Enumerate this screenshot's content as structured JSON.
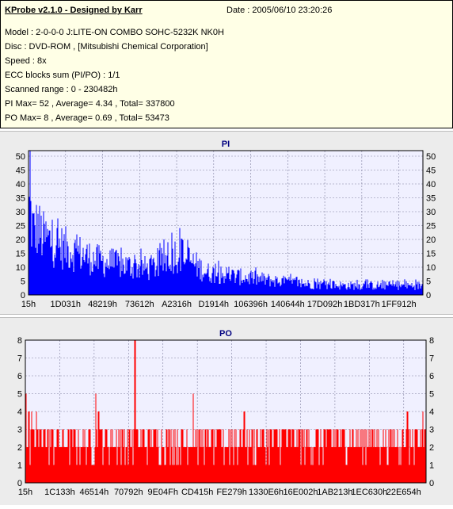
{
  "header": {
    "title": "KProbe v2.1.0 - Designed by Karr",
    "date": "Date : 2005/06/10 23:20:26",
    "lines": [
      "Model : 2-0-0-0 J:LITE-ON COMBO SOHC-5232K NK0H",
      "Disc : DVD-ROM ,  [Mitsubishi Chemical Corporation]",
      "Speed : 8x",
      "ECC blocks sum (PI/PO) : 1/1",
      "Scanned range : 0 - 230482h",
      "PI Max= 52 , Average= 4.34 , Total= 337800",
      "PO Max= 8 , Average= 0.69 , Total= 53473"
    ]
  },
  "colors": {
    "pi": "#0000ff",
    "po": "#ff0000",
    "plot_bg": "#f0f0ff",
    "title_text": "#000080"
  },
  "chart_data": [
    {
      "type": "bar",
      "title": "PI",
      "series_name": "PI",
      "x_ticks": [
        "15h",
        "1D031h",
        "48219h",
        "73612h",
        "A2316h",
        "D1914h",
        "106396h",
        "140644h",
        "17D092h",
        "1BD317h",
        "1FF912h"
      ],
      "y_ticks": [
        0,
        5,
        10,
        15,
        20,
        25,
        30,
        35,
        40,
        45,
        50
      ],
      "ylim": [
        0,
        52
      ],
      "xlim": [
        0,
        230482
      ],
      "max": 52,
      "average": 4.34,
      "total": 337800,
      "grid": true,
      "envelope": [
        [
          0,
          40
        ],
        [
          500,
          52
        ],
        [
          1500,
          38
        ],
        [
          3000,
          34
        ],
        [
          5000,
          36
        ],
        [
          8000,
          31
        ],
        [
          12000,
          29
        ],
        [
          18000,
          26
        ],
        [
          24000,
          24
        ],
        [
          30000,
          22
        ],
        [
          38000,
          19
        ],
        [
          46000,
          17
        ],
        [
          54000,
          16
        ],
        [
          62000,
          15
        ],
        [
          70000,
          14
        ],
        [
          76000,
          16
        ],
        [
          82000,
          20
        ],
        [
          86000,
          22
        ],
        [
          90000,
          21
        ],
        [
          96000,
          17
        ],
        [
          104000,
          12
        ],
        [
          112000,
          11
        ],
        [
          120000,
          10
        ],
        [
          130000,
          9
        ],
        [
          140000,
          8
        ],
        [
          150000,
          7
        ],
        [
          160000,
          6
        ],
        [
          172000,
          5.5
        ],
        [
          185000,
          5
        ],
        [
          200000,
          5
        ],
        [
          215000,
          5
        ],
        [
          230482,
          5
        ]
      ]
    },
    {
      "type": "bar",
      "title": "PO",
      "series_name": "PO",
      "x_ticks": [
        "15h",
        "1C133h",
        "46514h",
        "70792h",
        "9E04Fh",
        "CD415h",
        "FE279h",
        "1330E6h",
        "16E002h",
        "1AB213h",
        "1EC630h",
        "22E654h"
      ],
      "y_ticks": [
        0,
        1,
        2,
        3,
        4,
        5,
        6,
        7,
        8
      ],
      "ylim": [
        0,
        8
      ],
      "xlim": [
        0,
        230482
      ],
      "max": 8,
      "average": 0.69,
      "total": 53473,
      "grid": true,
      "spikes": [
        [
          300,
          5
        ],
        [
          1800,
          4
        ],
        [
          3500,
          4
        ],
        [
          6000,
          4
        ],
        [
          8500,
          3
        ],
        [
          40500,
          5
        ],
        [
          42000,
          4
        ],
        [
          63000,
          8
        ],
        [
          75000,
          3
        ],
        [
          96500,
          5
        ],
        [
          126000,
          4
        ],
        [
          150000,
          3
        ],
        [
          198000,
          3
        ],
        [
          220000,
          4
        ],
        [
          225000,
          3
        ],
        [
          229000,
          4
        ]
      ]
    }
  ]
}
